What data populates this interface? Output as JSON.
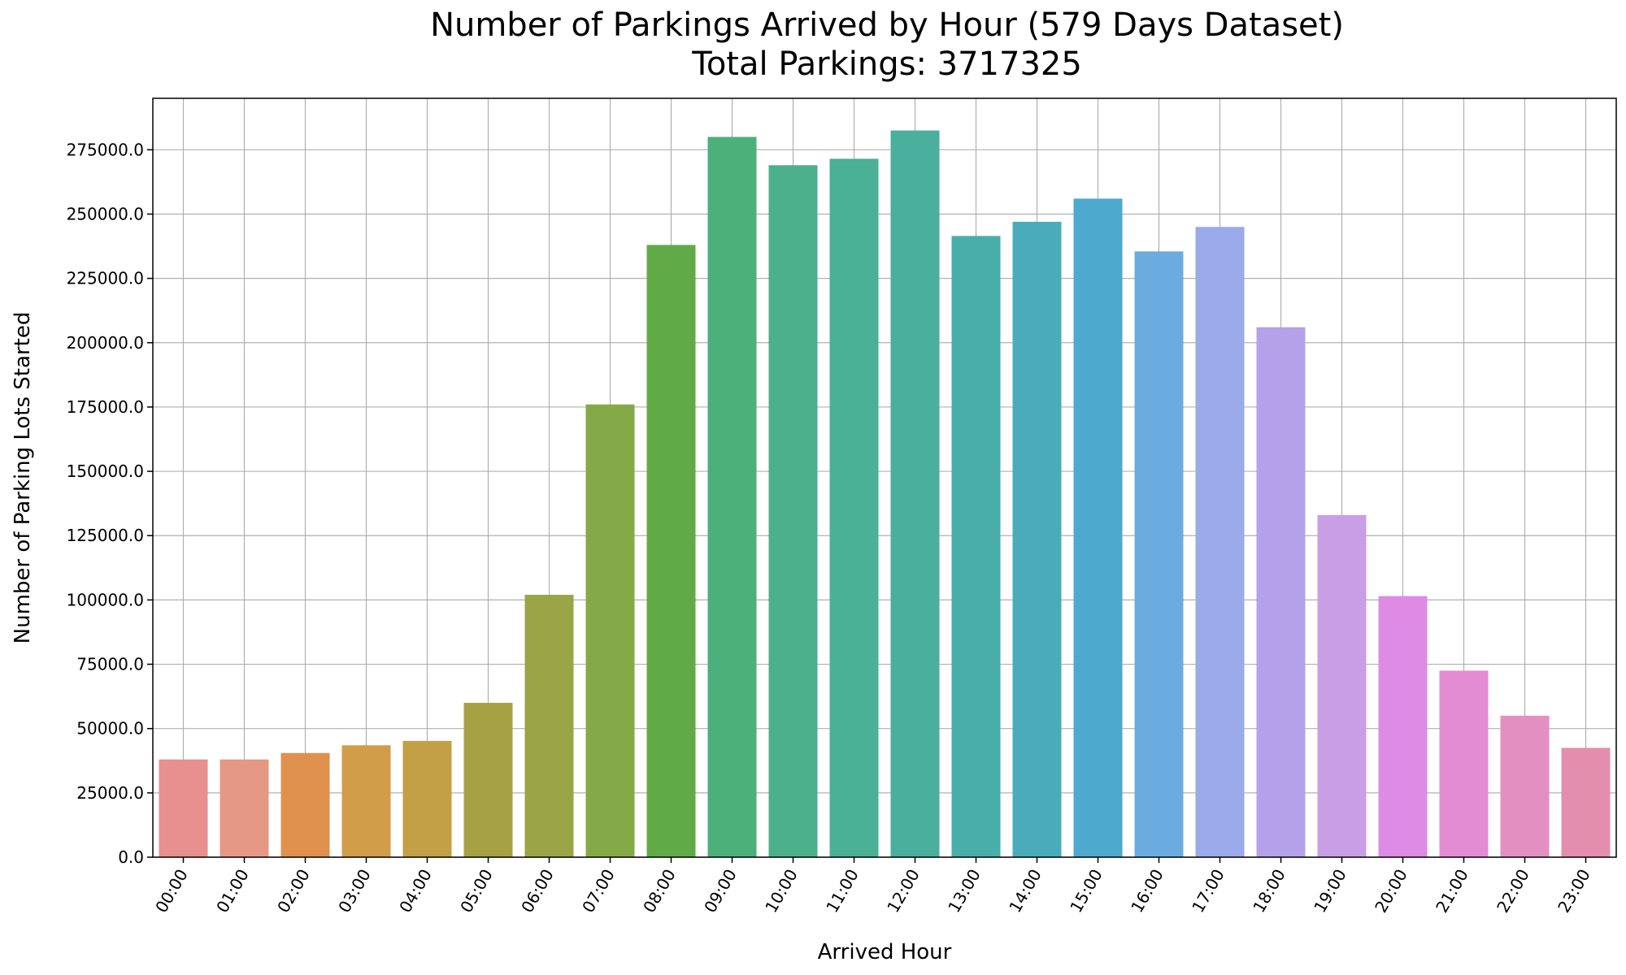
{
  "chart_data": {
    "type": "bar",
    "title": "Number of Parkings Arrived by Hour (579 Days Dataset)",
    "subtitle": "Total Parkings: 3717325",
    "xlabel": "Arrived Hour",
    "ylabel": "Number of Parking Lots Started",
    "ylim": [
      0,
      295000
    ],
    "yticks": [
      0,
      25000,
      50000,
      75000,
      100000,
      125000,
      150000,
      175000,
      200000,
      225000,
      250000,
      275000
    ],
    "ytick_labels": [
      "0.0",
      "25000.0",
      "50000.0",
      "75000.0",
      "100000.0",
      "125000.0",
      "150000.0",
      "175000.0",
      "200000.0",
      "225000.0",
      "250000.0",
      "275000.0"
    ],
    "grid": true,
    "categories": [
      "00:00",
      "01:00",
      "02:00",
      "03:00",
      "04:00",
      "05:00",
      "06:00",
      "07:00",
      "08:00",
      "09:00",
      "10:00",
      "11:00",
      "12:00",
      "13:00",
      "14:00",
      "15:00",
      "16:00",
      "17:00",
      "18:00",
      "19:00",
      "20:00",
      "21:00",
      "22:00",
      "23:00"
    ],
    "values": [
      38000,
      38000,
      40500,
      43500,
      45200,
      60000,
      102000,
      176000,
      238000,
      280000,
      269000,
      271500,
      282500,
      241500,
      247000,
      256000,
      235500,
      245000,
      206000,
      133000,
      101500,
      72500,
      55000,
      42500
    ],
    "colors": [
      "#e88f8f",
      "#e59884",
      "#e0914e",
      "#d29d49",
      "#c3a046",
      "#a6a244",
      "#9aa548",
      "#84aa47",
      "#60ab48",
      "#4bb07a",
      "#4bb08c",
      "#4ab096",
      "#4aaf9d",
      "#49aeaa",
      "#4aacba",
      "#4da9ce",
      "#6bace0",
      "#9aaaea",
      "#b4a1e9",
      "#c99ee6",
      "#dd8be5",
      "#e38cd4",
      "#e48fc2",
      "#e48ead"
    ]
  }
}
